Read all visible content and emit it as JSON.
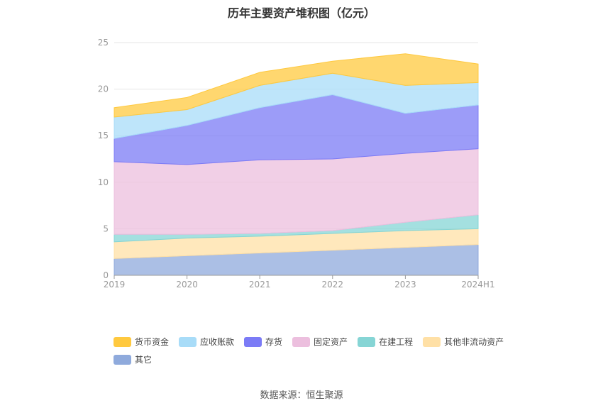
{
  "chart_data": {
    "type": "area",
    "stacked": true,
    "title": "历年主要资产堆积图（亿元）",
    "x": [
      "2019",
      "2020",
      "2021",
      "2022",
      "2023",
      "2024H1"
    ],
    "ylim": [
      0,
      25
    ],
    "yticks": [
      0,
      5,
      10,
      15,
      20,
      25
    ],
    "grid": true,
    "legend_position": "bottom",
    "series": [
      {
        "name": "其它",
        "color": "#8FAADC",
        "values": [
          1.8,
          2.1,
          2.4,
          2.7,
          3.0,
          3.3
        ]
      },
      {
        "name": "其他非流动资产",
        "color": "#FFE0A6",
        "values": [
          1.8,
          1.9,
          1.8,
          1.8,
          1.8,
          1.7
        ]
      },
      {
        "name": "在建工程",
        "color": "#86D5D5",
        "values": [
          0.8,
          0.4,
          0.3,
          0.3,
          0.9,
          1.5
        ]
      },
      {
        "name": "固定资产",
        "color": "#ECBFDE",
        "values": [
          7.8,
          7.5,
          7.9,
          7.7,
          7.4,
          7.1
        ]
      },
      {
        "name": "存货",
        "color": "#7B7BF6",
        "values": [
          2.5,
          4.2,
          5.6,
          6.9,
          4.3,
          4.7
        ]
      },
      {
        "name": "应收账款",
        "color": "#A8DCF8",
        "values": [
          2.3,
          1.7,
          2.4,
          2.3,
          3.0,
          2.4
        ]
      },
      {
        "name": "货币资金",
        "color": "#FFC93F",
        "values": [
          1.0,
          1.3,
          1.4,
          1.3,
          3.4,
          2.0
        ]
      }
    ]
  },
  "legend_order": [
    "货币资金",
    "应收账款",
    "存货",
    "固定资产",
    "在建工程",
    "其他非流动资产",
    "其它"
  ],
  "source_note": "数据来源：恒生聚源"
}
